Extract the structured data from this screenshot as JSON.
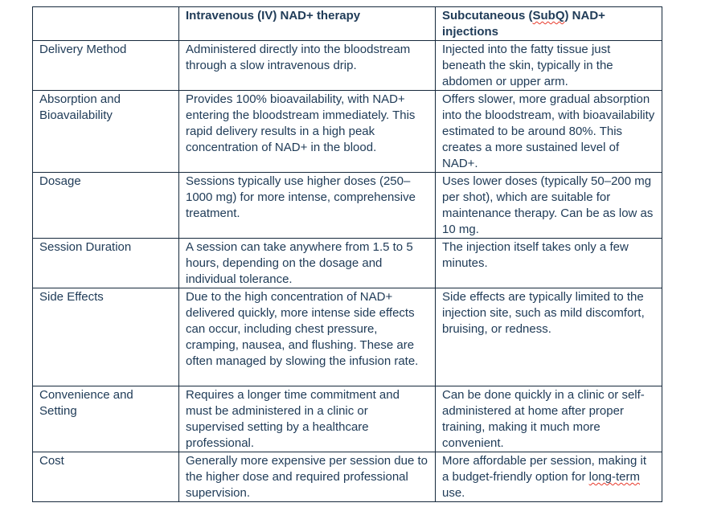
{
  "colors": {
    "text": "#203c58",
    "border": "#16293c",
    "spellcheck_squiggle": "#e8392b",
    "background": "#ffffff"
  },
  "table": {
    "header": {
      "col1": "",
      "col2": "Intravenous (IV) NAD+ therapy",
      "col3": {
        "pre": "Subcutaneous (",
        "flagged": "SubQ",
        "post": ") NAD+ injections"
      }
    },
    "rows": [
      {
        "label": "Delivery Method",
        "iv": "Administered directly into the bloodstream through a slow intravenous drip.",
        "subq": "Injected into the fatty tissue just beneath the skin, typically in the abdomen or upper arm."
      },
      {
        "label": "Absorption and Bioavailability",
        "iv": "Provides 100% bioavailability, with NAD+ entering the bloodstream immediately. This rapid delivery results in a high peak concentration of NAD+ in the blood.",
        "subq": "Offers slower, more gradual absorption into the bloodstream, with bioavailability estimated to be around 80%. This creates a more sustained level of NAD+."
      },
      {
        "label": "Dosage",
        "iv": "Sessions typically use higher doses (250–1000 mg) for more intense, comprehensive treatment.",
        "subq": "Uses lower doses (typically 50–200 mg per shot), which are suitable for maintenance therapy. Can be as low as 10 mg."
      },
      {
        "label": "Session Duration",
        "iv": "A session can take anywhere from 1.5 to 5 hours, depending on the dosage and individual tolerance.",
        "subq": "The injection itself takes only a few minutes."
      },
      {
        "label": "Side Effects",
        "iv": "Due to the high concentration of NAD+ delivered quickly, more intense side effects can occur, including chest pressure, cramping, nausea, and flushing. These are often managed by slowing the infusion rate.",
        "subq": "Side effects are typically limited to the injection site, such as mild discomfort, bruising, or redness."
      },
      {
        "label": "Convenience and Setting",
        "iv": "Requires a longer time commitment and must be administered in a clinic or supervised setting by a healthcare professional.",
        "subq": "Can be done quickly in a clinic or self-administered at home after proper training, making it much more convenient."
      },
      {
        "label": "Cost",
        "iv": "Generally more expensive per session due to the higher dose and required professional supervision.",
        "subq": {
          "pre": "More affordable per session, making it a budget-friendly option for ",
          "flagged": "long-term",
          "post": " use."
        }
      }
    ]
  }
}
